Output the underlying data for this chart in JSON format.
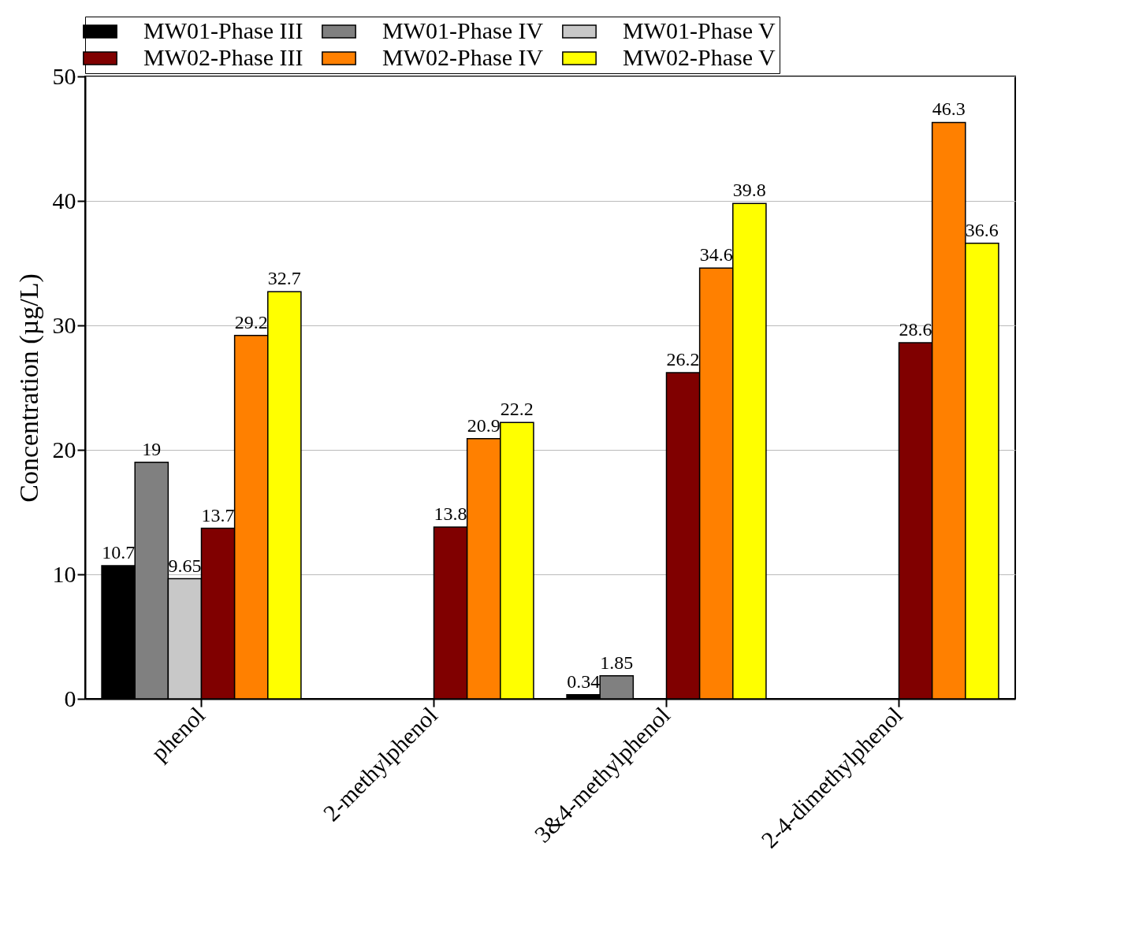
{
  "chart_data": {
    "type": "bar",
    "ylabel": "Concentration (µg/L)",
    "categories": [
      "phenol",
      "2-methylphenol",
      "3&4-methylphenol",
      "2-4-dimethylphenol"
    ],
    "series": [
      {
        "name": "MW01-Phase III",
        "color": "#000000",
        "values": [
          10.7,
          null,
          0.34,
          null
        ]
      },
      {
        "name": "MW01-Phase IV",
        "color": "#808080",
        "values": [
          19,
          null,
          1.85,
          null
        ]
      },
      {
        "name": "MW01-Phase V",
        "color": "#c8c8c8",
        "values": [
          9.65,
          null,
          null,
          null
        ]
      },
      {
        "name": "MW02-Phase III",
        "color": "#800000",
        "values": [
          13.7,
          13.8,
          26.2,
          28.6
        ]
      },
      {
        "name": "MW02-Phase IV",
        "color": "#ff8000",
        "values": [
          29.2,
          20.9,
          34.6,
          46.3
        ]
      },
      {
        "name": "MW02-Phase V",
        "color": "#ffff00",
        "values": [
          32.7,
          22.2,
          39.8,
          36.6
        ]
      }
    ],
    "ylim": [
      0,
      50
    ],
    "yticks": [
      0,
      10,
      20,
      30,
      40,
      50
    ],
    "grid": "y",
    "legend": "top",
    "data_labels": true
  }
}
